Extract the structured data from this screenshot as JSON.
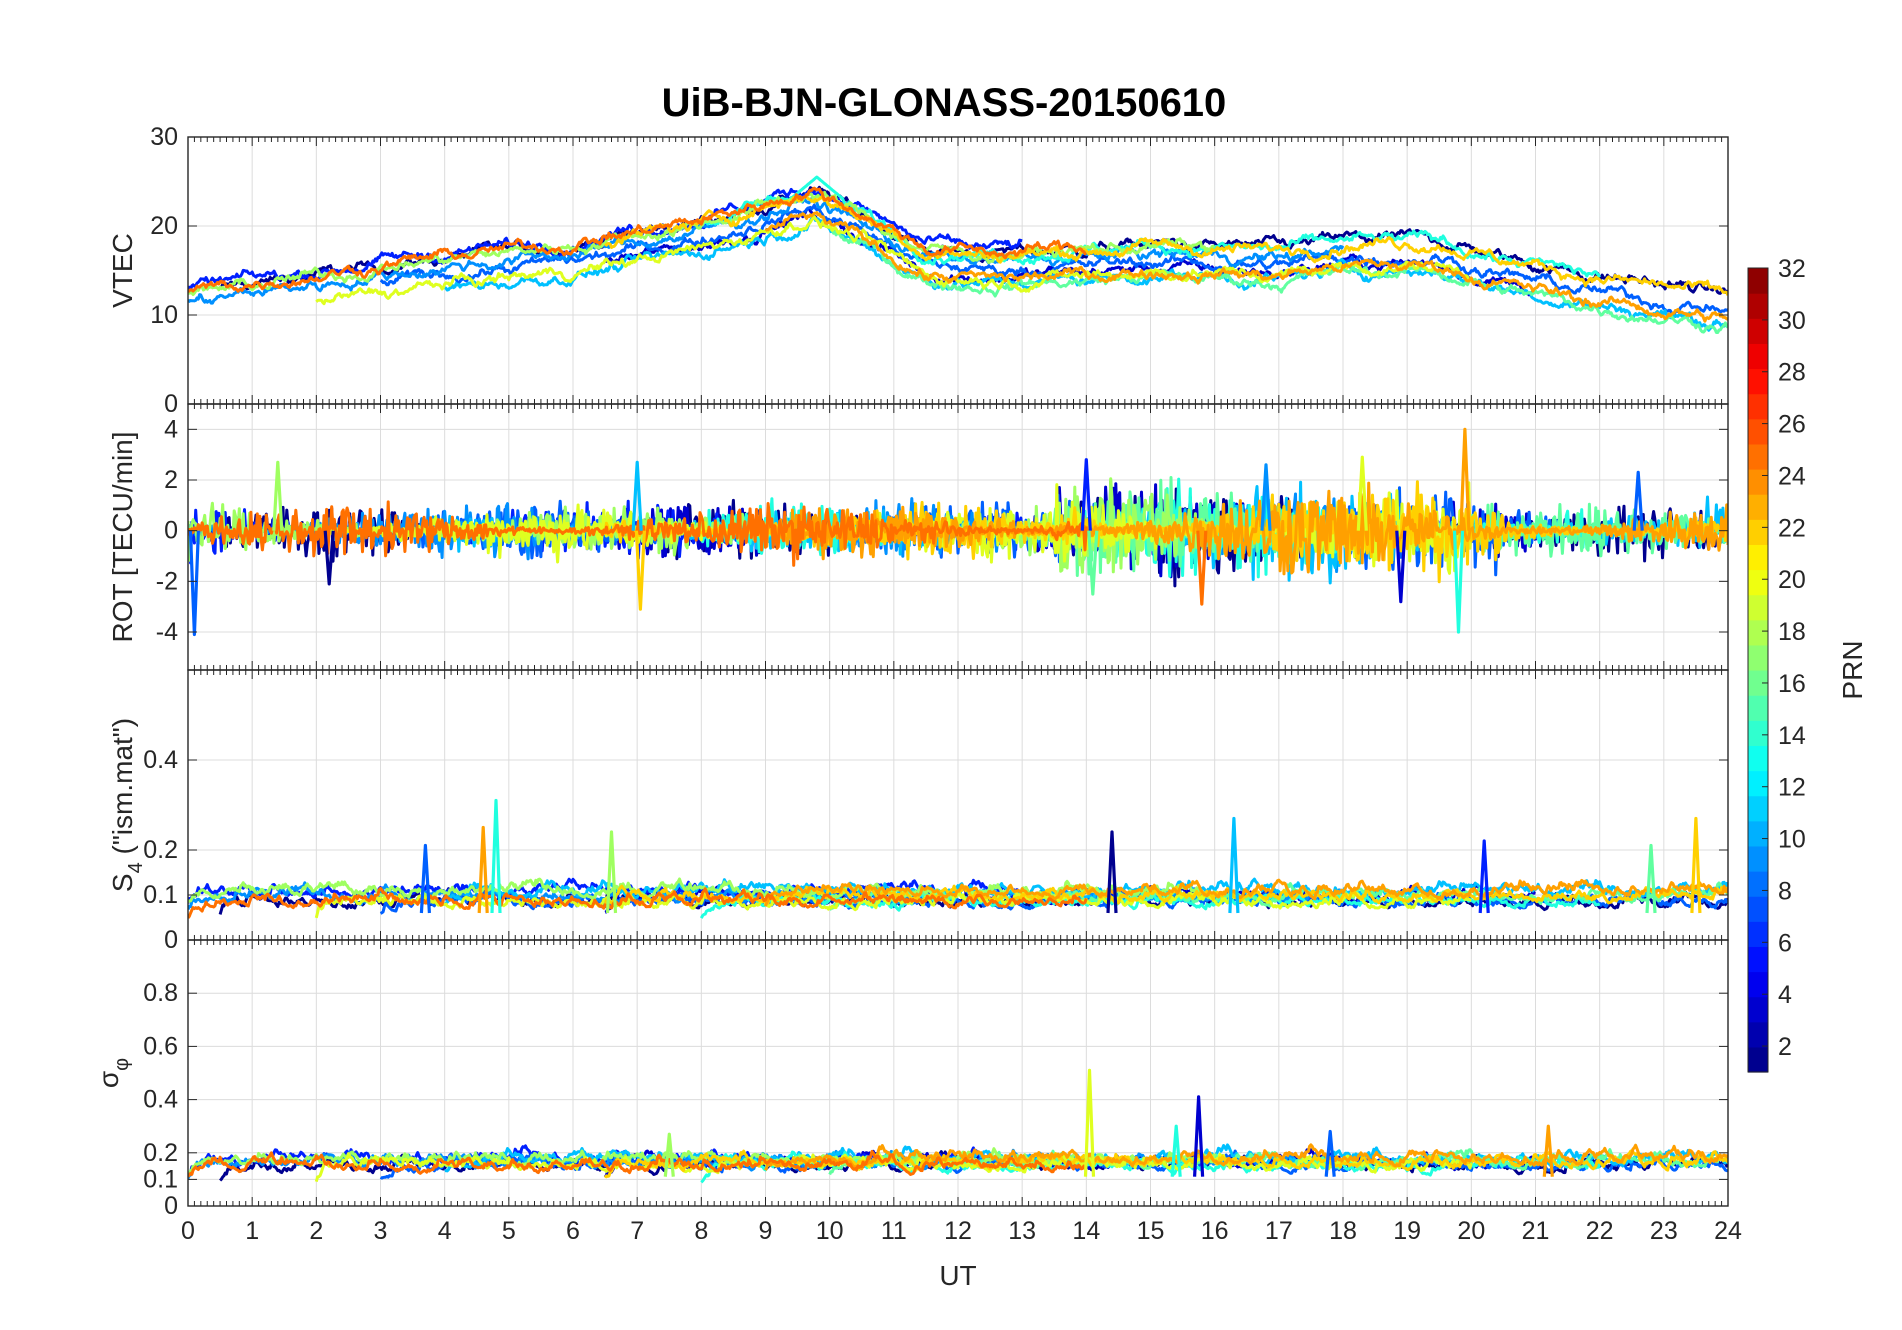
{
  "chart_data": {
    "type": "line",
    "title": "UiB-BJN-GLONASS-20150610",
    "xlabel": "UT",
    "xlim": [
      0,
      24
    ],
    "xticks": [
      "0",
      "1",
      "2",
      "3",
      "4",
      "5",
      "6",
      "7",
      "8",
      "9",
      "10",
      "11",
      "12",
      "13",
      "14",
      "15",
      "16",
      "17",
      "18",
      "19",
      "20",
      "21",
      "22",
      "23",
      "24"
    ],
    "panels": [
      {
        "name": "vtec",
        "ylabel": "VTEC",
        "ylim": [
          0,
          30
        ],
        "yticks": [
          "0",
          "10",
          "20",
          "30"
        ],
        "yticks_values": [
          0,
          10,
          20,
          30
        ],
        "baseline": "trend",
        "trend": [
          [
            0,
            11
          ],
          [
            2,
            13
          ],
          [
            4,
            15
          ],
          [
            6,
            16.5
          ],
          [
            8,
            19
          ],
          [
            9,
            21
          ],
          [
            9.7,
            22.5
          ],
          [
            10.5,
            20
          ],
          [
            11.5,
            16
          ],
          [
            12.5,
            15.5
          ],
          [
            14,
            16
          ],
          [
            15,
            16.5
          ],
          [
            17,
            16
          ],
          [
            18,
            17
          ],
          [
            19.5,
            17
          ],
          [
            20.5,
            15
          ],
          [
            22,
            13
          ],
          [
            23,
            12
          ],
          [
            24,
            11
          ]
        ],
        "spread": 2.2,
        "noise": 0.6,
        "peak": [
          9.8,
          25.5
        ]
      },
      {
        "name": "rot",
        "ylabel": "ROT [TECU/min]",
        "ylim": [
          -5.5,
          5
        ],
        "yticks": [
          "-4",
          "-2",
          "0",
          "2",
          "4"
        ],
        "yticks_values": [
          -4,
          -2,
          0,
          2,
          4
        ],
        "baseline": "zero",
        "noise": 0.45,
        "spikes": [
          [
            0.1,
            -4.1
          ],
          [
            1.4,
            2.7
          ],
          [
            2.2,
            -2.1
          ],
          [
            7.0,
            2.7
          ],
          [
            7.05,
            -3.1
          ],
          [
            14.0,
            2.8
          ],
          [
            14.1,
            -2.5
          ],
          [
            15.8,
            -2.9
          ],
          [
            16.8,
            2.6
          ],
          [
            18.3,
            2.9
          ],
          [
            18.9,
            -2.8
          ],
          [
            19.8,
            -4.0
          ],
          [
            19.9,
            4.0
          ],
          [
            22.6,
            2.3
          ]
        ]
      },
      {
        "name": "s4",
        "ylabel": "S4 (\"ism.mat\")",
        "ylabel_main": "S",
        "ylabel_sub": "4",
        "ylabel_rest": " (\"ism.mat\")",
        "ylim": [
          0,
          0.6
        ],
        "yticks": [
          "0",
          "0.1",
          "0.2",
          "0.4"
        ],
        "yticks_values": [
          0,
          0.1,
          0.2,
          0.4
        ],
        "baseline": "floor",
        "base": 0.06,
        "noise": 0.02,
        "spikes": [
          [
            4.8,
            0.31
          ],
          [
            4.6,
            0.25
          ],
          [
            3.7,
            0.21
          ],
          [
            6.6,
            0.24
          ],
          [
            14.4,
            0.24
          ],
          [
            16.3,
            0.27
          ],
          [
            23.5,
            0.27
          ],
          [
            20.2,
            0.22
          ],
          [
            22.8,
            0.21
          ]
        ]
      },
      {
        "name": "sigma_phi",
        "ylabel": "σφ",
        "ylabel_main": "σ",
        "ylabel_sub": "φ",
        "ylim": [
          0,
          1
        ],
        "yticks": [
          "0",
          "0.1",
          "0.2",
          "0.4",
          "0.6",
          "0.8"
        ],
        "yticks_values": [
          0,
          0.1,
          0.2,
          0.4,
          0.6,
          0.8
        ],
        "baseline": "floor",
        "base": 0.11,
        "noise": 0.035,
        "spikes": [
          [
            14.05,
            0.51
          ],
          [
            15.75,
            0.41
          ],
          [
            15.4,
            0.3
          ],
          [
            21.2,
            0.3
          ],
          [
            17.8,
            0.28
          ],
          [
            7.5,
            0.27
          ]
        ]
      }
    ],
    "series": [
      {
        "name": "PRN 1",
        "prn": 1,
        "color": "#00008f",
        "range": [
          0.5,
          24
        ]
      },
      {
        "name": "PRN 3",
        "prn": 3,
        "color": "#0000cf",
        "range": [
          6.5,
          21
        ]
      },
      {
        "name": "PRN 5",
        "prn": 5,
        "color": "#0020ff",
        "range": [
          0,
          13
        ]
      },
      {
        "name": "PRN 7",
        "prn": 7,
        "color": "#0060ff",
        "range": [
          3,
          24
        ]
      },
      {
        "name": "PRN 9",
        "prn": 9,
        "color": "#0090ff",
        "range": [
          0,
          18
        ]
      },
      {
        "name": "PRN 11",
        "prn": 11,
        "color": "#00c0ff",
        "range": [
          4,
          24
        ]
      },
      {
        "name": "PRN 13",
        "prn": 13,
        "color": "#20ffdf",
        "range": [
          8,
          22
        ]
      },
      {
        "name": "PRN 15",
        "prn": 15,
        "color": "#60ff9f",
        "range": [
          10,
          24
        ]
      },
      {
        "name": "PRN 17",
        "prn": 17,
        "color": "#9fff60",
        "range": [
          0,
          16
        ]
      },
      {
        "name": "PRN 19",
        "prn": 19,
        "color": "#dfff20",
        "range": [
          2,
          20
        ]
      },
      {
        "name": "PRN 21",
        "prn": 21,
        "color": "#ffd000",
        "range": [
          6.5,
          24
        ]
      },
      {
        "name": "PRN 23",
        "prn": 23,
        "color": "#ffa000",
        "range": [
          9,
          24
        ]
      },
      {
        "name": "PRN 24",
        "prn": 24,
        "color": "#ff7000",
        "range": [
          0,
          14
        ]
      }
    ],
    "colorbar": {
      "label": "PRN",
      "ticks": [
        "2",
        "4",
        "6",
        "8",
        "10",
        "12",
        "14",
        "16",
        "18",
        "20",
        "22",
        "24",
        "26",
        "28",
        "30",
        "32"
      ],
      "range": [
        1,
        32
      ],
      "colors": [
        "#00008f",
        "#0000af",
        "#0000cf",
        "#0000ef",
        "#0010ff",
        "#0030ff",
        "#0050ff",
        "#0070ff",
        "#0090ff",
        "#00b0ff",
        "#00d0ff",
        "#00f0ff",
        "#10ffef",
        "#30ffcf",
        "#50ffaf",
        "#70ff8f",
        "#8fff70",
        "#afff50",
        "#cfff30",
        "#efff10",
        "#ffef00",
        "#ffcf00",
        "#ffaf00",
        "#ff8f00",
        "#ff7000",
        "#ff5000",
        "#ff3000",
        "#ff1000",
        "#ef0000",
        "#cf0000",
        "#af0000",
        "#8f0000"
      ]
    }
  }
}
